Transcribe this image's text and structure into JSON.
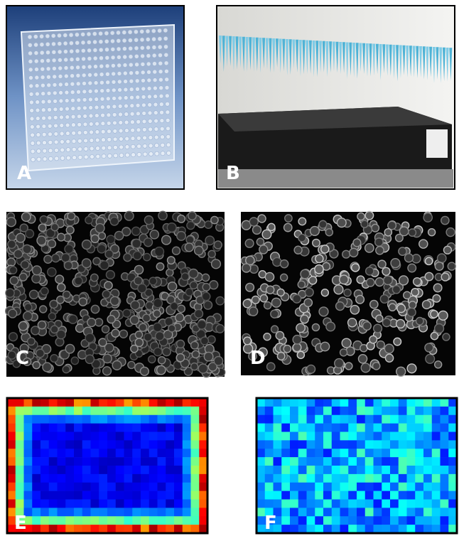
{
  "panels": [
    {
      "label": "A"
    },
    {
      "label": "B"
    },
    {
      "label": "C"
    },
    {
      "label": "D"
    },
    {
      "label": "E"
    },
    {
      "label": "F"
    }
  ]
}
